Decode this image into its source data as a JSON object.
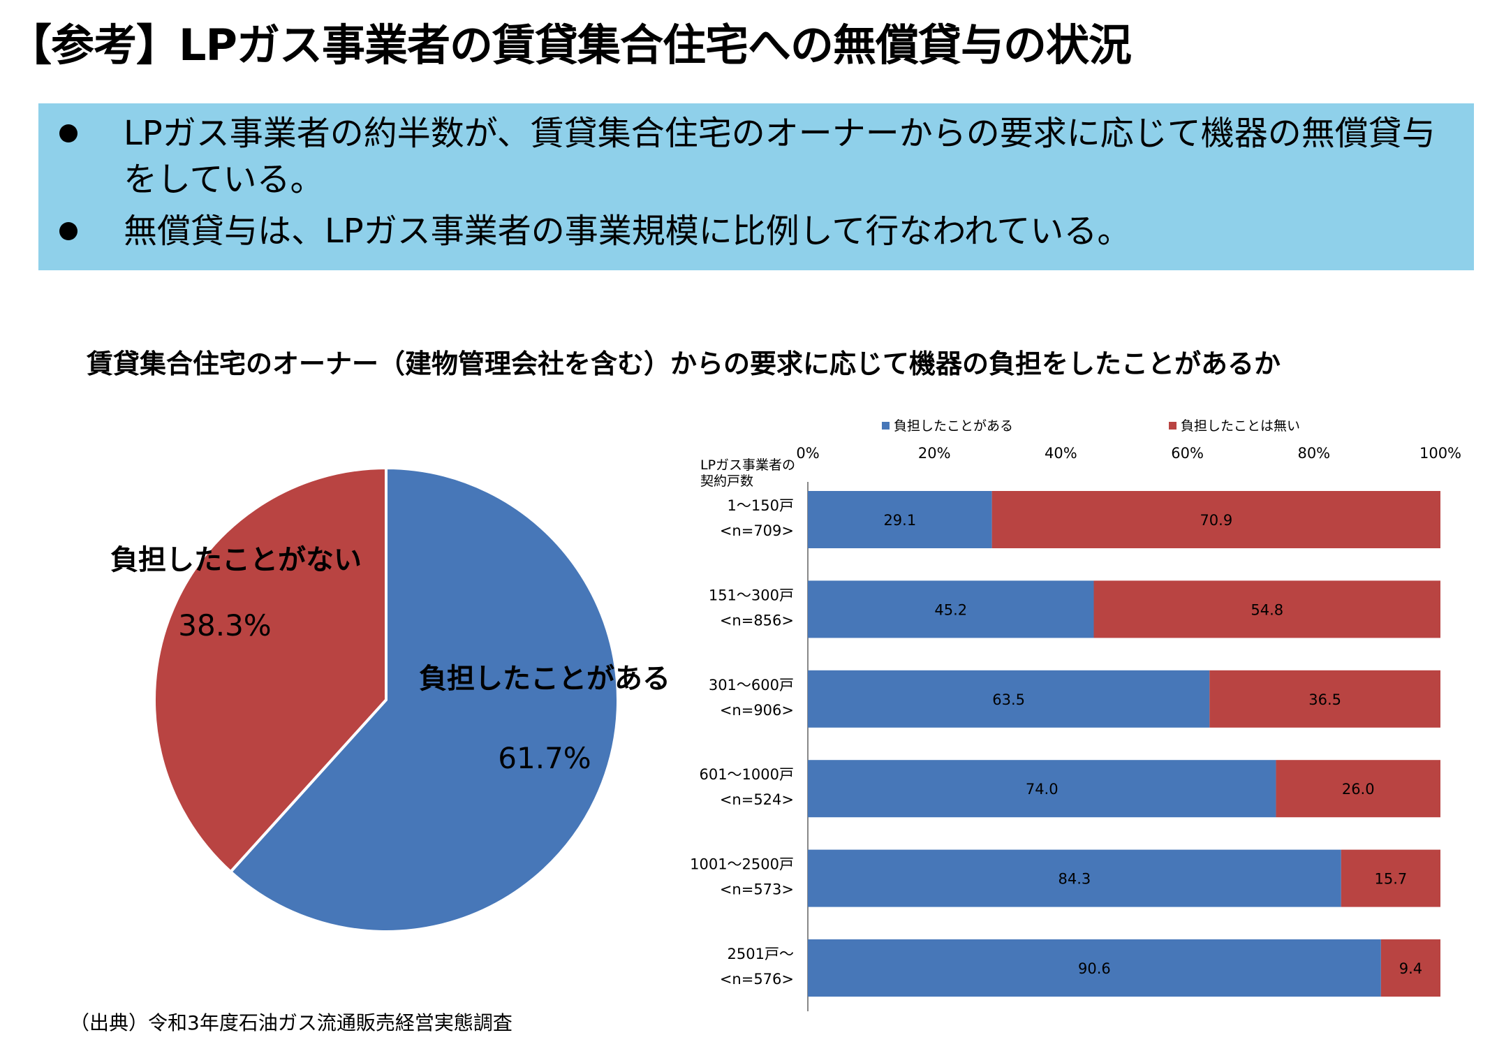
{
  "page": {
    "title": "【参考】LPガス事業者の賃貸集合住宅への無償貸与の状況",
    "summary_bullets": [
      "LPガス事業者の約半数が、賃貸集合住宅のオーナーからの要求に応じて機器の無償貸与をしている。",
      "無償貸与は、LPガス事業者の事業規模に比例して行なわれている。"
    ],
    "chart_heading": "賃貸集合住宅のオーナー（建物管理会社を含む）からの要求に応じて機器の負担をしたことがあるか",
    "source": "（出典）令和3年度石油ガス流通販売経営実態調査",
    "summary_box_color": "#8fd0ea"
  },
  "chart_data": [
    {
      "type": "pie",
      "title": "",
      "slices": [
        {
          "label": "負担したことがある",
          "value": 61.7,
          "value_label": "61.7%",
          "color": "#4777b8"
        },
        {
          "label": "負担したことがない",
          "value": 38.3,
          "value_label": "38.3%",
          "color": "#b94442"
        }
      ]
    },
    {
      "type": "bar",
      "orientation": "horizontal",
      "stacked": true,
      "title": "",
      "ylabel": "LPガス事業者の契約戸数",
      "categories": [
        {
          "label": "1～150戸",
          "n": "<n=709>"
        },
        {
          "label": "151～300戸",
          "n": "<n=856>"
        },
        {
          "label": "301～600戸",
          "n": "<n=906>"
        },
        {
          "label": "601～1000戸",
          "n": "<n=524>"
        },
        {
          "label": "1001～2500戸",
          "n": "<n=573>"
        },
        {
          "label": "2501戸～",
          "n": "<n=576>"
        }
      ],
      "series": [
        {
          "name": "負担したことがある",
          "color": "#4777b8",
          "values": [
            29.1,
            45.2,
            63.5,
            74.0,
            84.3,
            90.6
          ]
        },
        {
          "name": "負担したことは無い",
          "color": "#b94442",
          "values": [
            70.9,
            54.8,
            36.5,
            26.0,
            15.7,
            9.4
          ]
        }
      ],
      "xlim": [
        0,
        100
      ],
      "xticks": [
        "0%",
        "20%",
        "40%",
        "60%",
        "80%",
        "100%"
      ],
      "legend_position": "top",
      "grid": false
    }
  ]
}
